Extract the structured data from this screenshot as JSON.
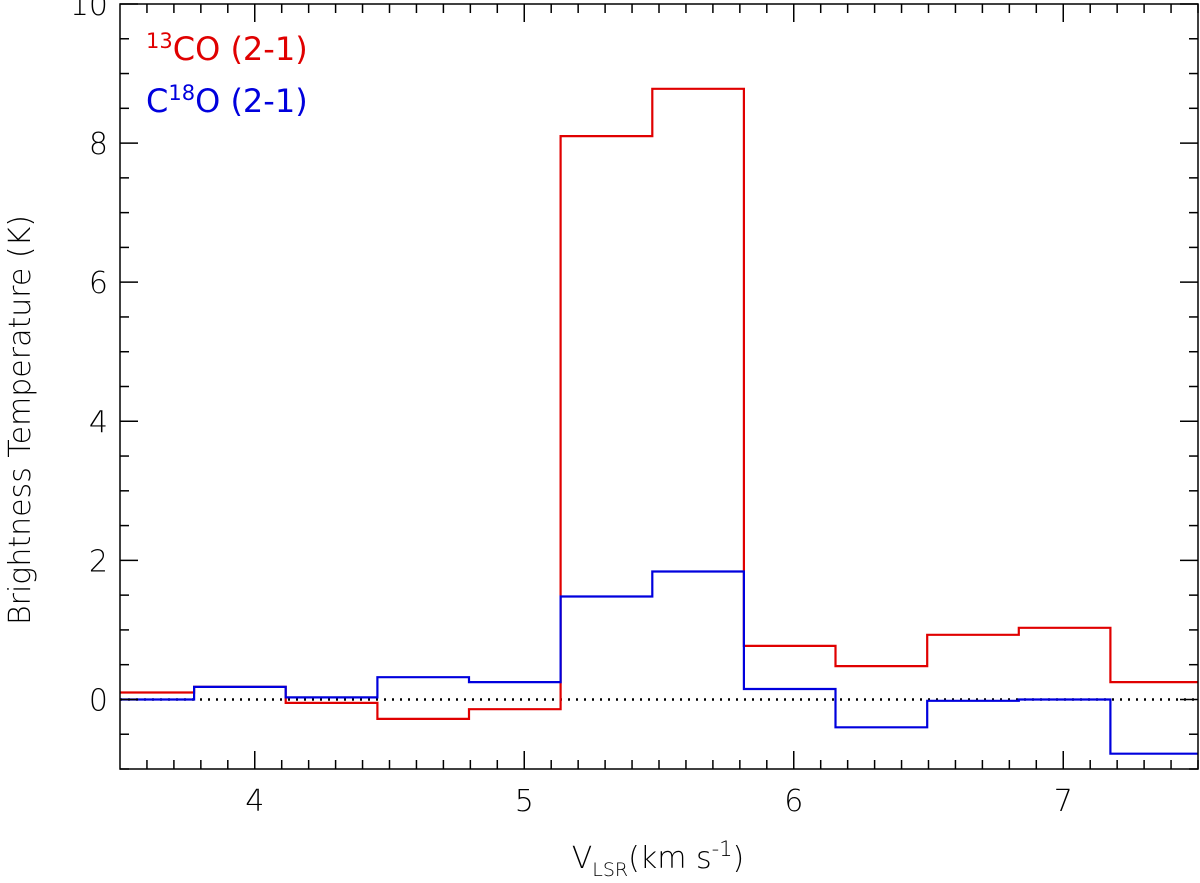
{
  "chart_data": {
    "type": "line",
    "step": true,
    "title": "",
    "xlabel": {
      "main": "V",
      "subscript": "LSR",
      "rest": "(km  s",
      "exp": "-1",
      "close": ")"
    },
    "ylabel": "Brightness  Temperature  (K)",
    "xlim": [
      3.5,
      7.5
    ],
    "ylim": [
      -1,
      10
    ],
    "x_ticks": [
      "4",
      "5",
      "6",
      "7"
    ],
    "y_ticks": [
      "0",
      "2",
      "4",
      "6",
      "8",
      "10"
    ],
    "zero_line": "dotted",
    "legend_position": "top-left",
    "bin_edges": [
      3.435,
      3.775,
      4.115,
      4.455,
      4.795,
      5.135,
      5.475,
      5.815,
      6.155,
      6.495,
      6.835,
      7.175,
      7.515
    ],
    "series": [
      {
        "legend": {
          "sup": "13",
          "pre": "",
          "main": "CO (2-1)"
        },
        "color": "#e00000",
        "values": [
          0.1,
          0.18,
          -0.05,
          -0.28,
          -0.14,
          8.1,
          8.78,
          0.77,
          0.48,
          0.93,
          1.03,
          0.25
        ]
      },
      {
        "legend": {
          "sup": "18",
          "pre": "C",
          "main": "O (2-1)"
        },
        "color": "#0000dd",
        "values": [
          0.0,
          0.18,
          0.03,
          0.32,
          0.25,
          1.48,
          1.84,
          0.15,
          -0.4,
          -0.02,
          0.0,
          -0.78
        ]
      }
    ]
  }
}
